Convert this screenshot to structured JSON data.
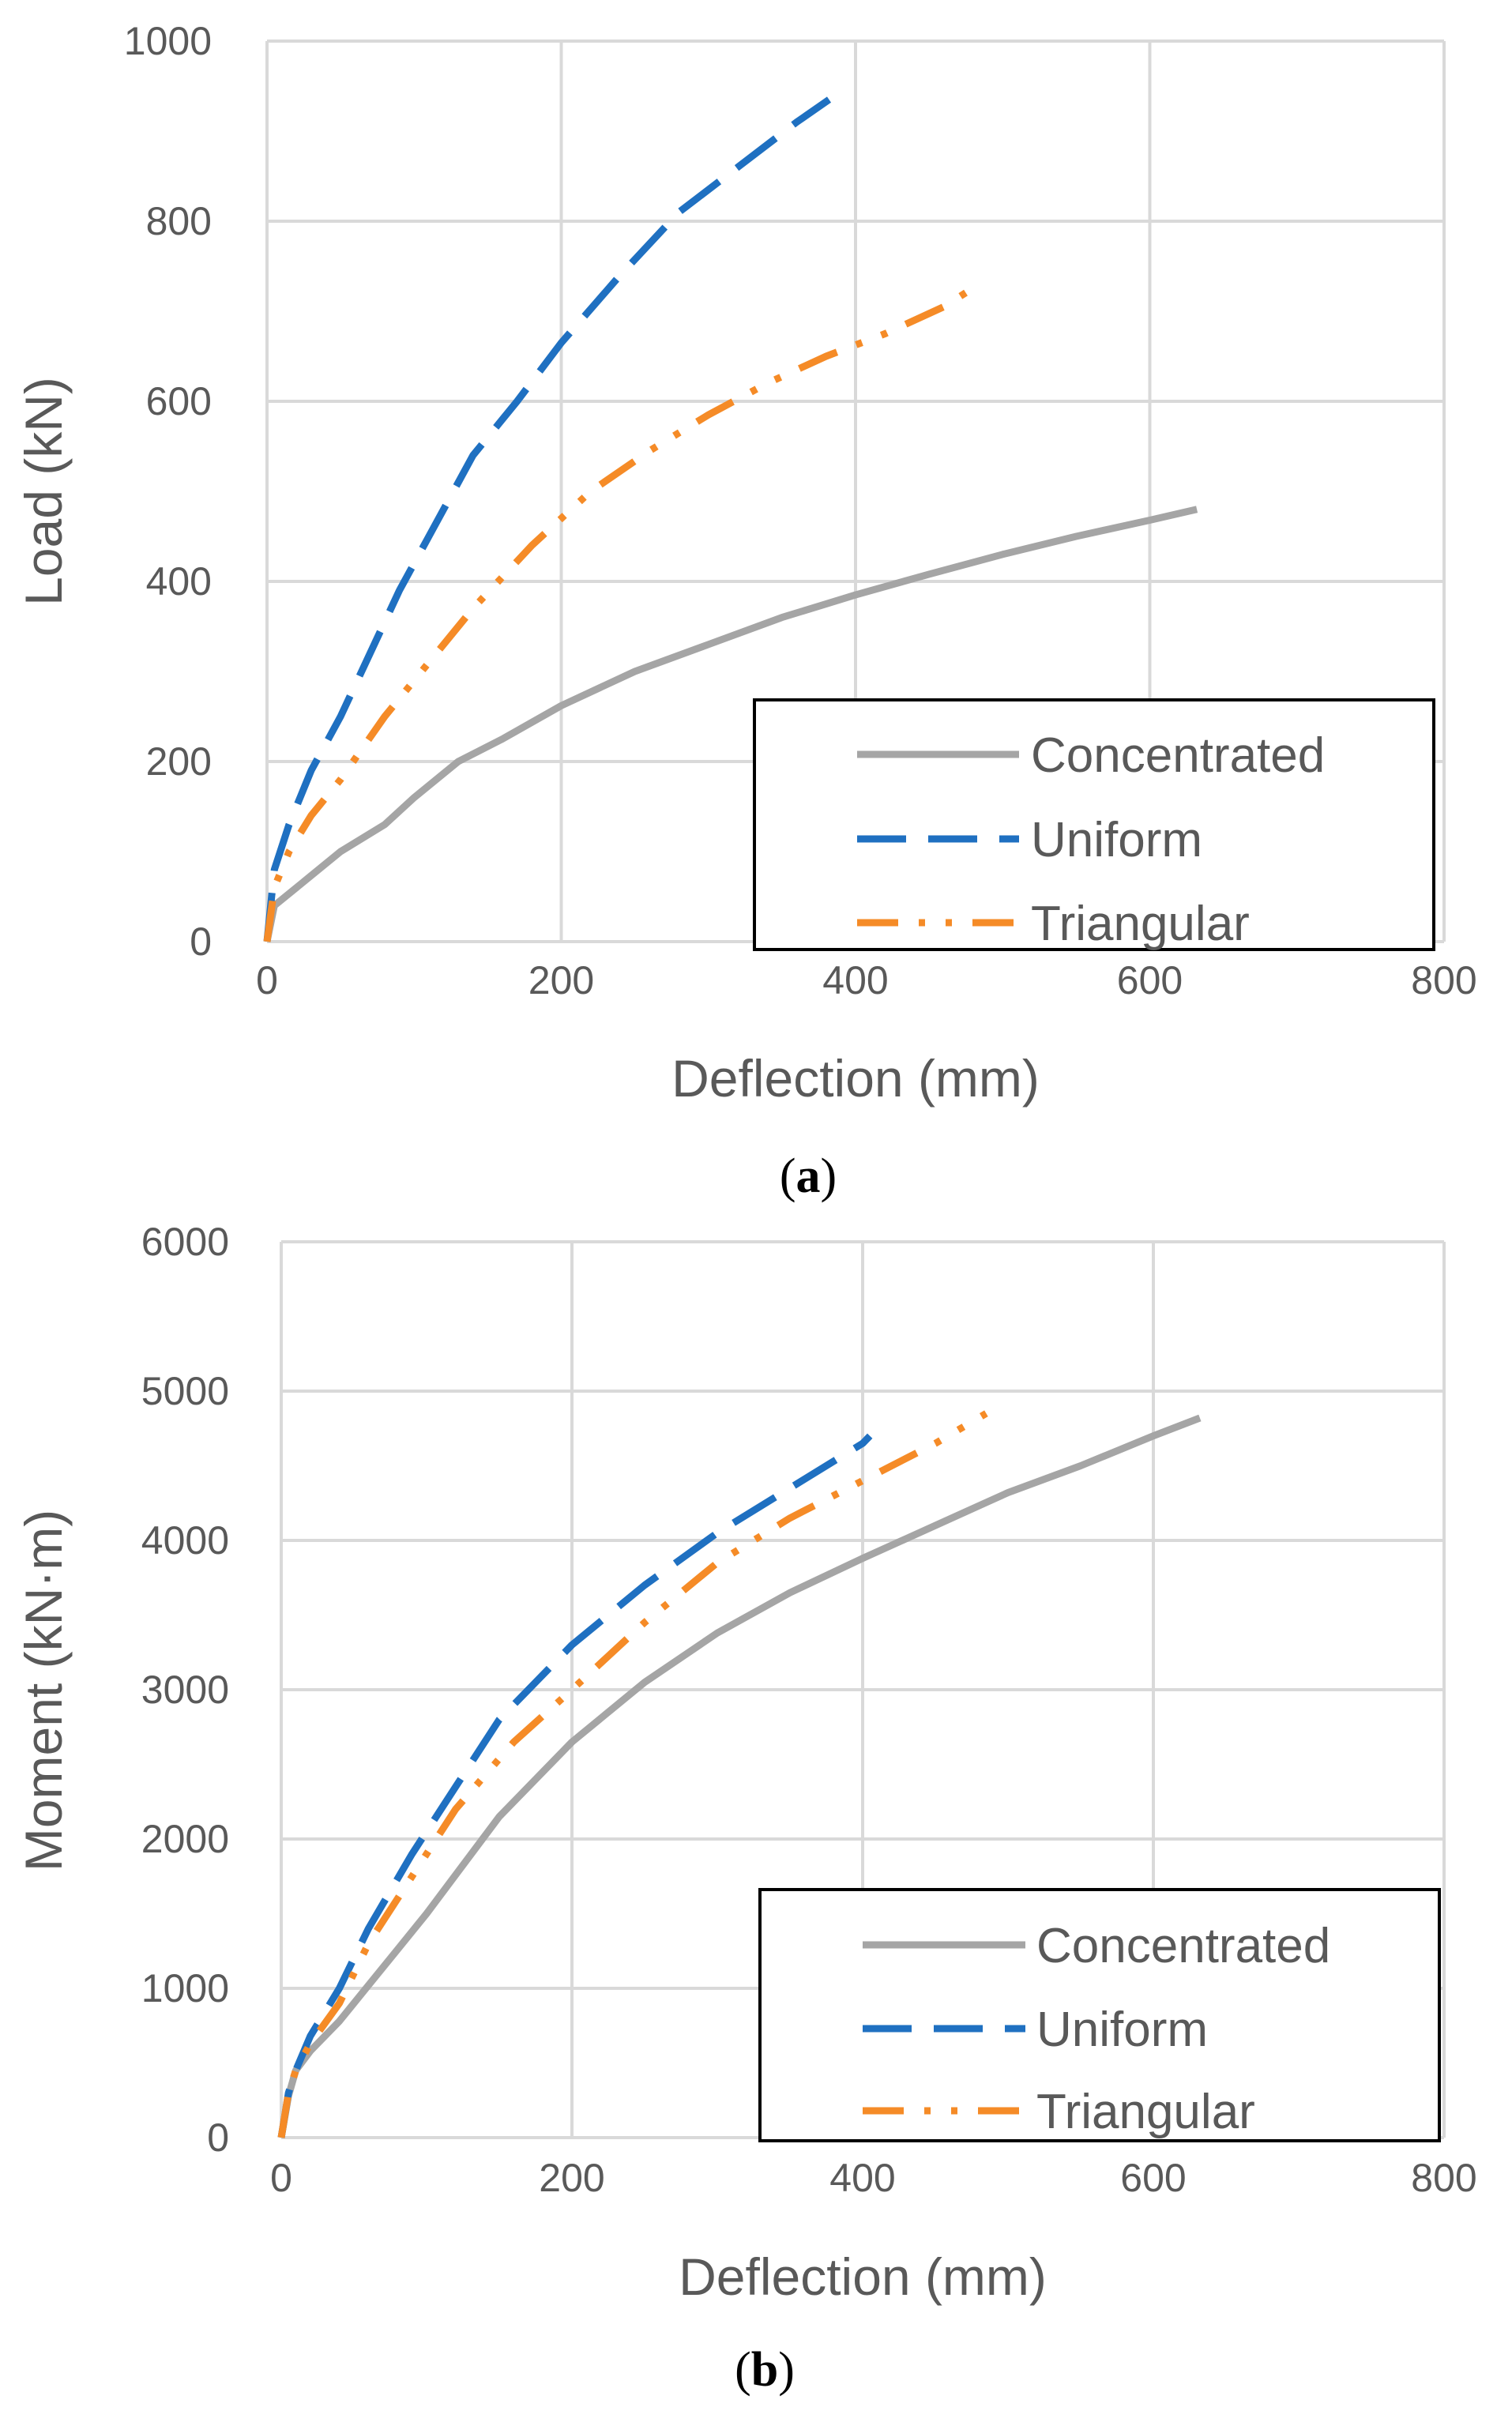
{
  "chart_data": [
    {
      "type": "line",
      "panel": "a",
      "caption_open": "(",
      "caption_letter": "a",
      "caption_close": ")",
      "xlabel": "Deflection (mm)",
      "ylabel": "Load (kN)",
      "xlim": [
        0,
        800
      ],
      "ylim": [
        0,
        1000
      ],
      "xticks": [
        0,
        200,
        400,
        600,
        800
      ],
      "yticks": [
        0,
        200,
        400,
        600,
        800,
        1000
      ],
      "grid": true,
      "legend_position": "bottom-right",
      "series": [
        {
          "name": "Concentrated",
          "style": "solid",
          "color": "#A5A5A5",
          "x": [
            0,
            5,
            20,
            50,
            80,
            100,
            130,
            160,
            200,
            250,
            300,
            350,
            400,
            450,
            500,
            550,
            600,
            632
          ],
          "y": [
            0,
            40,
            60,
            100,
            130,
            160,
            200,
            225,
            262,
            300,
            330,
            360,
            385,
            408,
            430,
            450,
            468,
            480
          ]
        },
        {
          "name": "Uniform",
          "style": "dashed",
          "color": "#1F70C1",
          "x": [
            0,
            5,
            15,
            30,
            50,
            70,
            90,
            110,
            140,
            170,
            200,
            240,
            280,
            320,
            360,
            382
          ],
          "y": [
            0,
            80,
            130,
            190,
            250,
            320,
            390,
            450,
            540,
            600,
            665,
            740,
            810,
            860,
            910,
            935
          ]
        },
        {
          "name": "Triangular",
          "style": "dash-dot-dot",
          "color": "#F58B27",
          "x": [
            0,
            5,
            15,
            30,
            50,
            80,
            110,
            140,
            180,
            220,
            260,
            300,
            340,
            380,
            420,
            460,
            482
          ],
          "y": [
            0,
            60,
            100,
            140,
            180,
            250,
            310,
            370,
            440,
            500,
            545,
            585,
            620,
            650,
            675,
            705,
            728
          ]
        }
      ]
    },
    {
      "type": "line",
      "panel": "b",
      "caption_open": "(",
      "caption_letter": "b",
      "caption_close": ")",
      "xlabel": "Deflection (mm)",
      "ylabel": "Moment (kN·m)",
      "xlim": [
        0,
        800
      ],
      "ylim": [
        0,
        6000
      ],
      "xticks": [
        0,
        200,
        400,
        600,
        800
      ],
      "yticks": [
        0,
        1000,
        2000,
        3000,
        4000,
        5000,
        6000
      ],
      "grid": true,
      "legend_position": "bottom-right",
      "series": [
        {
          "name": "Concentrated",
          "style": "solid",
          "color": "#A5A5A5",
          "x": [
            0,
            5,
            10,
            20,
            40,
            60,
            80,
            100,
            150,
            200,
            250,
            300,
            350,
            400,
            450,
            500,
            550,
            600,
            632
          ],
          "y": [
            0,
            280,
            450,
            580,
            780,
            1020,
            1260,
            1500,
            2150,
            2650,
            3050,
            3380,
            3650,
            3880,
            4100,
            4320,
            4500,
            4700,
            4820
          ]
        },
        {
          "name": "Uniform",
          "style": "dashed",
          "color": "#1F70C1",
          "x": [
            0,
            5,
            10,
            20,
            40,
            60,
            90,
            120,
            150,
            200,
            250,
            300,
            350,
            400,
            405
          ],
          "y": [
            0,
            300,
            450,
            680,
            1000,
            1400,
            1900,
            2350,
            2800,
            3300,
            3700,
            4050,
            4350,
            4650,
            4700
          ]
        },
        {
          "name": "Triangular",
          "style": "dash-dot-dot",
          "color": "#F58B27",
          "x": [
            0,
            5,
            10,
            20,
            40,
            60,
            90,
            120,
            160,
            200,
            250,
            300,
            350,
            400,
            450,
            485
          ],
          "y": [
            0,
            300,
            450,
            630,
            900,
            1300,
            1750,
            2200,
            2650,
            3000,
            3450,
            3850,
            4150,
            4400,
            4650,
            4850
          ]
        }
      ]
    }
  ]
}
